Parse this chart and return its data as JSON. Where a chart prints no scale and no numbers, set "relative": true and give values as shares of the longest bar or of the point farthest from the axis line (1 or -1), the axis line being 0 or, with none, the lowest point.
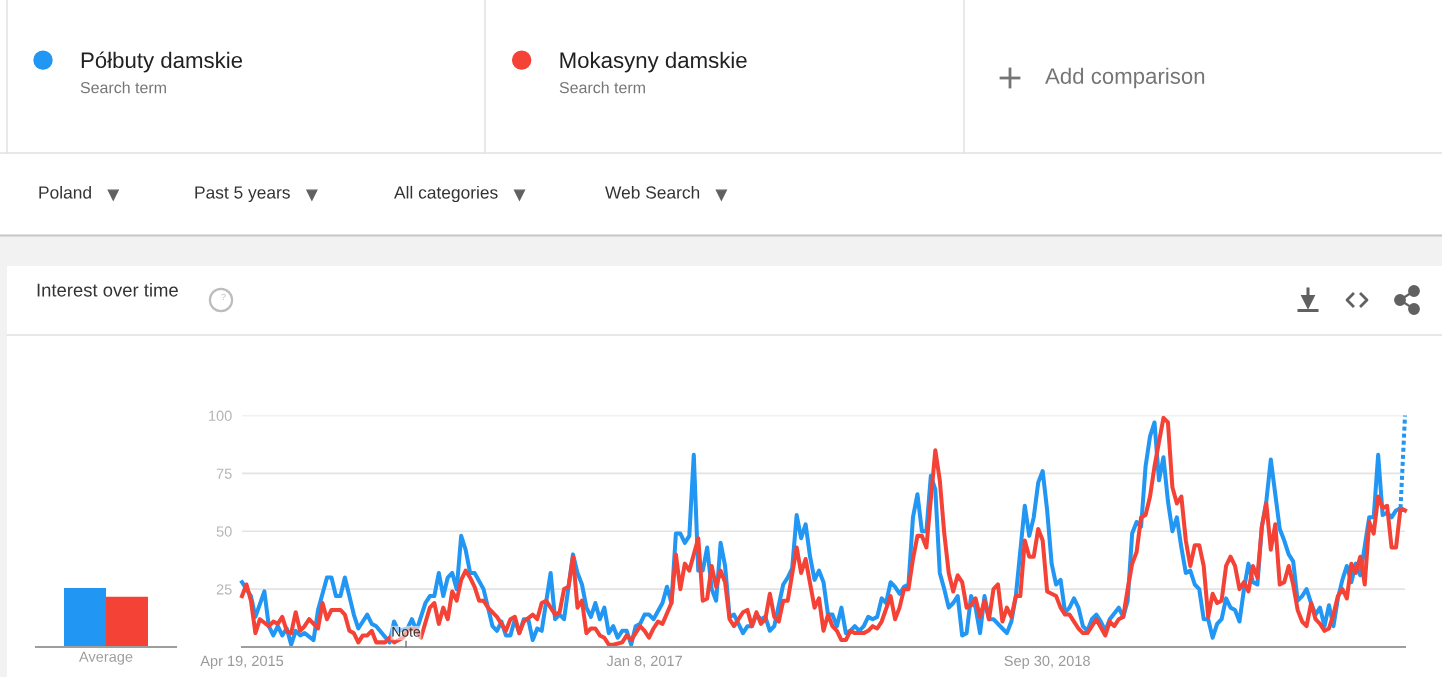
{
  "chart_data": [
    {
      "type": "other",
      "annotations": [
        "Search term",
        "Search term",
        "Add comparison",
        "Poland",
        "Past 5 years",
        "All categories",
        "Web Search"
      ]
    },
    {
      "type": "bar",
      "categories": [
        null
      ],
      "series": [
        {
          "color": "#2196f3",
          "values": [
            1
          ]
        },
        {
          "color": "#f44336",
          "values": [
            0.85
          ]
        }
      ],
      "relative": true,
      "xlabel": "Average"
    },
    {
      "type": "line",
      "title": "Interest over time",
      "legend": "top",
      "grid": "y",
      "xlim": [
        "2015-04-19",
        "2020-04-12"
      ],
      "xticks": [
        {
          "value": "2015-04-19",
          "label": "Apr 19, 2015"
        },
        {
          "value": "2017-01-08",
          "label": "Jan 8, 2017"
        },
        {
          "value": "2018-09-30",
          "label": "Sep 30, 2018"
        }
      ],
      "ylim": [
        0,
        100
      ],
      "yticks": [
        25,
        50,
        75,
        100
      ],
      "annotations": [
        "Note"
      ],
      "series": [
        {
          "name": "Półbuty damskie",
          "color": "#2196f3",
          "x": [
            "2015-04-19",
            "2015-05-03",
            "2015-05-10",
            "2015-05-24",
            "2015-05-31",
            "2015-06-07",
            "2015-06-14",
            "2015-06-21",
            "2015-06-28",
            "2015-07-05",
            "2015-07-12",
            "2015-07-19",
            "2015-07-26",
            "2015-08-09",
            "2015-08-16",
            "2015-08-30",
            "2015-09-06",
            "2015-09-13",
            "2015-09-20",
            "2015-09-27",
            "2015-10-11",
            "2015-10-18",
            "2015-11-01",
            "2015-11-08",
            "2015-11-15",
            "2015-12-06",
            "2015-12-13",
            "2015-12-20",
            "2016-01-03",
            "2016-01-10",
            "2016-01-17",
            "2016-01-24",
            "2016-01-31",
            "2016-02-07",
            "2016-02-14",
            "2016-02-21",
            "2016-02-28",
            "2016-03-06",
            "2016-03-13",
            "2016-03-20",
            "2016-03-27",
            "2016-04-03",
            "2016-04-10",
            "2016-04-17",
            "2016-05-01",
            "2016-05-08",
            "2016-05-15",
            "2016-05-22",
            "2016-05-29",
            "2016-06-05",
            "2016-06-12",
            "2016-06-19",
            "2016-06-26",
            "2016-07-03",
            "2016-07-10",
            "2016-07-17",
            "2016-07-24",
            "2016-07-31",
            "2016-08-14",
            "2016-08-21",
            "2016-08-28",
            "2016-09-04",
            "2016-09-18",
            "2016-09-25",
            "2016-10-02",
            "2016-10-09",
            "2016-10-16",
            "2016-10-23",
            "2016-10-30",
            "2016-11-06",
            "2016-11-13",
            "2016-11-20",
            "2016-11-27",
            "2016-12-04",
            "2016-12-11",
            "2016-12-18",
            "2016-12-25",
            "2017-01-01",
            "2017-01-08",
            "2017-01-15",
            "2017-01-22",
            "2017-02-05",
            "2017-02-12",
            "2017-02-19",
            "2017-02-26",
            "2017-03-05",
            "2017-03-12",
            "2017-03-19",
            "2017-03-26",
            "2017-04-02",
            "2017-04-09",
            "2017-04-16",
            "2017-04-23",
            "2017-04-30",
            "2017-05-07",
            "2017-05-14",
            "2017-05-21",
            "2017-05-28",
            "2017-06-11",
            "2017-06-18",
            "2017-06-25",
            "2017-07-02",
            "2017-07-09",
            "2017-07-16",
            "2017-07-23",
            "2017-07-30",
            "2017-08-13",
            "2017-08-20",
            "2017-08-27",
            "2017-09-03",
            "2017-09-10",
            "2017-09-17",
            "2017-09-24",
            "2017-10-01",
            "2017-10-08",
            "2017-10-15",
            "2017-10-22",
            "2017-10-29",
            "2017-11-05",
            "2017-11-12",
            "2017-11-19",
            "2017-11-26",
            "2017-12-03",
            "2017-12-10",
            "2017-12-17",
            "2017-12-24",
            "2017-12-31",
            "2018-01-07",
            "2018-01-14",
            "2018-01-21",
            "2018-01-28",
            "2018-02-04",
            "2018-02-11",
            "2018-02-18",
            "2018-02-25",
            "2018-03-04",
            "2018-03-11",
            "2018-03-18",
            "2018-03-25",
            "2018-04-01",
            "2018-04-08",
            "2018-04-15",
            "2018-04-22",
            "2018-04-29",
            "2018-05-06",
            "2018-05-13",
            "2018-05-20",
            "2018-05-27",
            "2018-06-03",
            "2018-06-10",
            "2018-06-17",
            "2018-06-24",
            "2018-07-01",
            "2018-07-08",
            "2018-07-22",
            "2018-07-29",
            "2018-08-05",
            "2018-08-12",
            "2018-08-26",
            "2018-09-02",
            "2018-09-09",
            "2018-09-16",
            "2018-09-23",
            "2018-09-30",
            "2018-10-07",
            "2018-10-14",
            "2018-10-21",
            "2018-10-28",
            "2018-11-04",
            "2018-11-11",
            "2018-11-18",
            "2018-11-25",
            "2018-12-02",
            "2018-12-09",
            "2018-12-16",
            "2018-12-23",
            "2018-12-30",
            "2019-01-06",
            "2019-01-20",
            "2019-01-27",
            "2019-02-03",
            "2019-02-10",
            "2019-02-17",
            "2019-02-24",
            "2019-03-03",
            "2019-03-10",
            "2019-03-17",
            "2019-03-24",
            "2019-03-31",
            "2019-04-07",
            "2019-04-14",
            "2019-04-21",
            "2019-04-28",
            "2019-05-05",
            "2019-05-12",
            "2019-05-19",
            "2019-05-26",
            "2019-06-02",
            "2019-06-09",
            "2019-06-16",
            "2019-06-23",
            "2019-06-30",
            "2019-07-07",
            "2019-07-14",
            "2019-07-21",
            "2019-07-28",
            "2019-08-04",
            "2019-08-11",
            "2019-08-18",
            "2019-08-25",
            "2019-09-01",
            "2019-09-08",
            "2019-09-15",
            "2019-09-22",
            "2019-09-29",
            "2019-10-06",
            "2019-10-13",
            "2019-10-20",
            "2019-10-27",
            "2019-11-03",
            "2019-11-10",
            "2019-11-17",
            "2019-11-24",
            "2019-12-01",
            "2019-12-08",
            "2019-12-15",
            "2019-12-22",
            "2019-12-29",
            "2020-01-05",
            "2020-01-12",
            "2020-01-19",
            "2020-01-26",
            "2020-02-02",
            "2020-02-16",
            "2020-02-23",
            "2020-03-01",
            "2020-03-08",
            "2020-03-15",
            "2020-03-22",
            "2020-03-29",
            "2020-04-05"
          ],
          "values": [
            28,
            22,
            13,
            24,
            9,
            5,
            9,
            5,
            8,
            1,
            7,
            5,
            6,
            3,
            16,
            30,
            30,
            22,
            22,
            30,
            14,
            8,
            14,
            10,
            9,
            2,
            11,
            7,
            8,
            12,
            7,
            13,
            19,
            22,
            22,
            32,
            22,
            30,
            32,
            25,
            48,
            42,
            32,
            32,
            25,
            17,
            9,
            7,
            11,
            5,
            5,
            12,
            6,
            12,
            12,
            3,
            8,
            7,
            32,
            12,
            14,
            12,
            40,
            32,
            27,
            17,
            13,
            19,
            12,
            17,
            6,
            9,
            4,
            7,
            7,
            1,
            9,
            10,
            14,
            14,
            12,
            19,
            26,
            19,
            49,
            49,
            45,
            48,
            83,
            33,
            33,
            43,
            25,
            20,
            45,
            35,
            13,
            14,
            6,
            9,
            9,
            14,
            12,
            13,
            7,
            9,
            27,
            30,
            34,
            57,
            47,
            53,
            39,
            29,
            33,
            28,
            14,
            14,
            9,
            17,
            6,
            7,
            9,
            7,
            9,
            13,
            12,
            13,
            21,
            19,
            28,
            26,
            23,
            26,
            27,
            56,
            66,
            50,
            50,
            74,
            68,
            32,
            25,
            17,
            19,
            22,
            5,
            6,
            22,
            17,
            6,
            22,
            12,
            12,
            8,
            6,
            11,
            22,
            61,
            48,
            56,
            71,
            76,
            59,
            36,
            27,
            29,
            15,
            17,
            21,
            17,
            9,
            7,
            12,
            14,
            11,
            7,
            12,
            17,
            13,
            20,
            49,
            54,
            52,
            78,
            91,
            97,
            72,
            82,
            63,
            50,
            56,
            43,
            32,
            33,
            27,
            25,
            12,
            12,
            4,
            10,
            12,
            21,
            17,
            16,
            11,
            25,
            36,
            28,
            27,
            52,
            63,
            81,
            66,
            51,
            46,
            40,
            37,
            20,
            22,
            25,
            19,
            14,
            17,
            9,
            18,
            9,
            21,
            29,
            35,
            28,
            36,
            31,
            56,
            56,
            83,
            57,
            58,
            56,
            59,
            60
          ]
        },
        {
          "name": "Mokasyny damskie",
          "color": "#f44336",
          "x": [
            "2015-04-19",
            "2015-04-26",
            "2015-05-03",
            "2015-05-10",
            "2015-05-17",
            "2015-05-31",
            "2015-06-07",
            "2015-06-14",
            "2015-06-21",
            "2015-06-28",
            "2015-07-05",
            "2015-07-12",
            "2015-07-19",
            "2015-07-26",
            "2015-08-02",
            "2015-08-16",
            "2015-08-23",
            "2015-08-30",
            "2015-09-06",
            "2015-09-20",
            "2015-09-27",
            "2015-10-04",
            "2015-10-11",
            "2015-10-18",
            "2015-10-25",
            "2015-11-01",
            "2015-11-08",
            "2015-11-15",
            "2015-11-29",
            "2015-12-06",
            "2015-12-13",
            "2015-12-27",
            "2016-01-03",
            "2016-01-10",
            "2016-01-17",
            "2016-01-24",
            "2016-02-07",
            "2016-02-14",
            "2016-02-21",
            "2016-02-28",
            "2016-03-06",
            "2016-03-13",
            "2016-03-20",
            "2016-03-27",
            "2016-04-03",
            "2016-04-10",
            "2016-04-17",
            "2016-04-24",
            "2016-05-01",
            "2016-05-08",
            "2016-05-22",
            "2016-05-29",
            "2016-06-05",
            "2016-06-12",
            "2016-06-19",
            "2016-06-26",
            "2016-07-03",
            "2016-07-17",
            "2016-07-24",
            "2016-07-31",
            "2016-08-07",
            "2016-08-14",
            "2016-08-21",
            "2016-08-28",
            "2016-09-04",
            "2016-09-11",
            "2016-09-18",
            "2016-09-25",
            "2016-10-02",
            "2016-10-09",
            "2016-10-16",
            "2016-10-23",
            "2016-10-30",
            "2016-11-06",
            "2016-11-13",
            "2016-11-20",
            "2016-12-04",
            "2016-12-11",
            "2016-12-18",
            "2017-01-01",
            "2017-01-08",
            "2017-01-15",
            "2017-01-22",
            "2017-01-29",
            "2017-02-05",
            "2017-02-19",
            "2017-02-26",
            "2017-03-05",
            "2017-03-12",
            "2017-03-19",
            "2017-04-02",
            "2017-04-09",
            "2017-04-16",
            "2017-04-23",
            "2017-04-30",
            "2017-05-07",
            "2017-05-14",
            "2017-05-21",
            "2017-05-28",
            "2017-06-11",
            "2017-06-18",
            "2017-06-25",
            "2017-07-02",
            "2017-07-09",
            "2017-07-16",
            "2017-07-23",
            "2017-07-30",
            "2017-08-06",
            "2017-08-13",
            "2017-08-20",
            "2017-09-03",
            "2017-09-10",
            "2017-09-17",
            "2017-10-01",
            "2017-10-08",
            "2017-10-15",
            "2017-10-22",
            "2017-10-29",
            "2017-11-05",
            "2017-11-12",
            "2017-11-19",
            "2017-11-26",
            "2017-12-03",
            "2017-12-17",
            "2017-12-24",
            "2017-12-31",
            "2018-01-07",
            "2018-01-14",
            "2018-01-28",
            "2018-02-04",
            "2018-02-11",
            "2018-02-18",
            "2018-02-25",
            "2018-03-04",
            "2018-03-11",
            "2018-03-18",
            "2018-03-25",
            "2018-04-08",
            "2018-04-15",
            "2018-04-22",
            "2018-04-29",
            "2018-05-06",
            "2018-05-13",
            "2018-05-20",
            "2018-05-27",
            "2018-06-03",
            "2018-06-10",
            "2018-06-17",
            "2018-06-24",
            "2018-07-01",
            "2018-07-08",
            "2018-07-15",
            "2018-07-22",
            "2018-07-29",
            "2018-08-05",
            "2018-08-12",
            "2018-08-19",
            "2018-08-26",
            "2018-09-02",
            "2018-09-09",
            "2018-09-16",
            "2018-09-23",
            "2018-09-30",
            "2018-10-07",
            "2018-10-14",
            "2018-10-21",
            "2018-10-28",
            "2018-11-04",
            "2018-11-11",
            "2018-11-18",
            "2018-11-25",
            "2018-12-02",
            "2018-12-09",
            "2018-12-16",
            "2018-12-30",
            "2019-01-06",
            "2019-01-13",
            "2019-01-20",
            "2019-01-27",
            "2019-02-03",
            "2019-02-10",
            "2019-02-17",
            "2019-02-24",
            "2019-03-03",
            "2019-03-10",
            "2019-03-17",
            "2019-03-31",
            "2019-04-07",
            "2019-04-14",
            "2019-04-21",
            "2019-04-28",
            "2019-05-05",
            "2019-05-12",
            "2019-05-19",
            "2019-05-26",
            "2019-06-02",
            "2019-06-09",
            "2019-06-16",
            "2019-06-23",
            "2019-06-30",
            "2019-07-07",
            "2019-07-14",
            "2019-07-21",
            "2019-07-28",
            "2019-08-04",
            "2019-08-11",
            "2019-08-18",
            "2019-08-25",
            "2019-09-01",
            "2019-09-08",
            "2019-09-15",
            "2019-09-22",
            "2019-09-29",
            "2019-10-06",
            "2019-10-13",
            "2019-10-20",
            "2019-10-27",
            "2019-11-03",
            "2019-11-10",
            "2019-11-17",
            "2019-11-24",
            "2019-12-01",
            "2019-12-08",
            "2019-12-15",
            "2019-12-22",
            "2019-12-29",
            "2020-01-05",
            "2020-01-12",
            "2020-01-19",
            "2020-01-26",
            "2020-02-02",
            "2020-02-09",
            "2020-02-16",
            "2020-02-23",
            "2020-03-01",
            "2020-03-08",
            "2020-03-15",
            "2020-03-22",
            "2020-03-29",
            "2020-04-05",
            "2020-04-12"
          ],
          "values": [
            22,
            27,
            20,
            6,
            12,
            9,
            11,
            10,
            13,
            7,
            6,
            15,
            7,
            9,
            12,
            8,
            19,
            12,
            16,
            16,
            14,
            7,
            6,
            2,
            5,
            5,
            7,
            2,
            2,
            4,
            2,
            4,
            7,
            8,
            7,
            4,
            17,
            19,
            10,
            17,
            12,
            24,
            20,
            29,
            33,
            30,
            26,
            20,
            20,
            17,
            13,
            10,
            7,
            12,
            13,
            6,
            11,
            14,
            12,
            19,
            20,
            17,
            14,
            15,
            25,
            26,
            39,
            17,
            20,
            6,
            8,
            8,
            5,
            4,
            1,
            1,
            2,
            5,
            3,
            9,
            7,
            4,
            8,
            11,
            10,
            19,
            40,
            25,
            36,
            33,
            47,
            20,
            21,
            35,
            26,
            33,
            28,
            12,
            9,
            15,
            16,
            9,
            15,
            10,
            12,
            23,
            13,
            11,
            20,
            20,
            43,
            32,
            38,
            17,
            21,
            7,
            14,
            9,
            7,
            3,
            3,
            7,
            6,
            6,
            7,
            9,
            8,
            11,
            22,
            12,
            17,
            25,
            25,
            38,
            48,
            48,
            43,
            85,
            72,
            49,
            32,
            24,
            31,
            28,
            17,
            18,
            21,
            13,
            20,
            12,
            25,
            27,
            11,
            17,
            13,
            22,
            22,
            46,
            39,
            39,
            51,
            46,
            24,
            23,
            22,
            17,
            14,
            14,
            11,
            8,
            6,
            6,
            9,
            12,
            5,
            11,
            9,
            12,
            13,
            25,
            36,
            41,
            56,
            57,
            65,
            78,
            99,
            97,
            69,
            62,
            65,
            46,
            35,
            44,
            44,
            35,
            13,
            23,
            19,
            20,
            35,
            39,
            35,
            25,
            28,
            24,
            35,
            30,
            52,
            62,
            42,
            53,
            27,
            28,
            35,
            27,
            16,
            11,
            9,
            19,
            12,
            10,
            7,
            8,
            14,
            22,
            25,
            21,
            36,
            32,
            39,
            27,
            54,
            49,
            65,
            60,
            61,
            43,
            43,
            60,
            59
          ]
        },
        {
          "color": "#2196f3",
          "line_style": "dotted",
          "x": [
            "2020-04-05",
            "2020-04-12"
          ],
          "values": [
            60,
            100
          ]
        }
      ]
    }
  ]
}
